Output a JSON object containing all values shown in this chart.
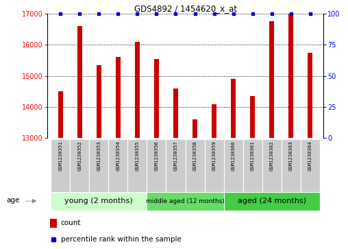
{
  "title": "GDS4892 / 1454620_x_at",
  "samples": [
    "GSM1230351",
    "GSM1230352",
    "GSM1230353",
    "GSM1230354",
    "GSM1230355",
    "GSM1230356",
    "GSM1230357",
    "GSM1230358",
    "GSM1230359",
    "GSM1230360",
    "GSM1230361",
    "GSM1230362",
    "GSM1230363",
    "GSM1230364"
  ],
  "counts": [
    14500,
    16600,
    15350,
    15600,
    16100,
    15550,
    14600,
    13600,
    14100,
    14900,
    14350,
    16750,
    17000,
    15750
  ],
  "percentiles": [
    100,
    100,
    100,
    100,
    100,
    100,
    100,
    100,
    100,
    100,
    100,
    100,
    100,
    100
  ],
  "ylim_left": [
    13000,
    17000
  ],
  "ylim_right": [
    0,
    100
  ],
  "yticks_left": [
    13000,
    14000,
    15000,
    16000,
    17000
  ],
  "yticks_right": [
    0,
    25,
    50,
    75,
    100
  ],
  "bar_color": "#cc0000",
  "dot_color": "#0000cc",
  "groups": [
    {
      "label": "young (2 months)",
      "start": 0,
      "end": 5,
      "color": "#ccffcc"
    },
    {
      "label": "middle aged (12 months)",
      "start": 5,
      "end": 9,
      "color": "#66dd66"
    },
    {
      "label": "aged (24 months)",
      "start": 9,
      "end": 14,
      "color": "#44cc44"
    }
  ],
  "group_label": "age",
  "legend_count_label": "count",
  "legend_pct_label": "percentile rank within the sample",
  "bar_width": 0.25,
  "label_area_color": "#cccccc"
}
